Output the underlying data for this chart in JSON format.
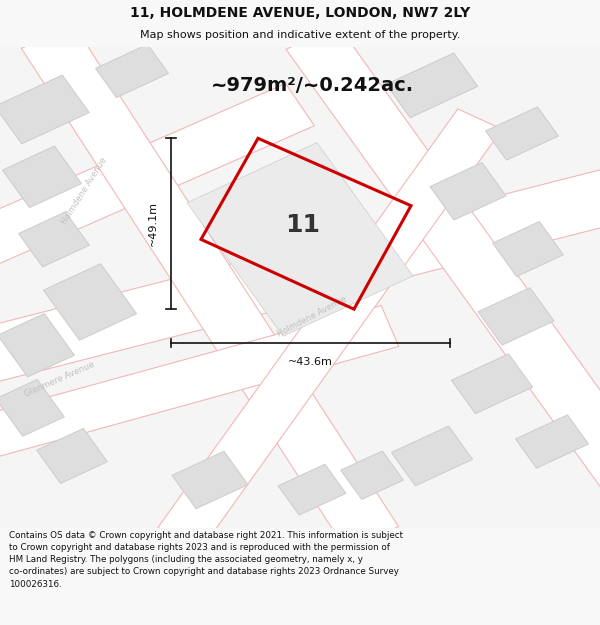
{
  "title": "11, HOLMDENE AVENUE, LONDON, NW7 2LY",
  "subtitle": "Map shows position and indicative extent of the property.",
  "area_label": "~979m²/~0.242ac.",
  "number_label": "11",
  "width_label": "~43.6m",
  "height_label": "~49.1m",
  "footer_text": "Contains OS data © Crown copyright and database right 2021. This information is subject to Crown copyright and database rights 2023 and is reproduced with the permission of HM Land Registry. The polygons (including the associated geometry, namely x, y co-ordinates) are subject to Crown copyright and database rights 2023 Ordnance Survey 100026316.",
  "bg_color": "#f8f8f8",
  "map_bg": "#f5f5f5",
  "road_fill": "#ffffff",
  "road_edge": "#f0b8b8",
  "building_fill": "#dedede",
  "building_edge": "#cccccc",
  "property_color": "#cc0000",
  "dim_color": "#111111",
  "street_color": "#c0c0c0",
  "title_color": "#111111",
  "footer_color": "#111111"
}
